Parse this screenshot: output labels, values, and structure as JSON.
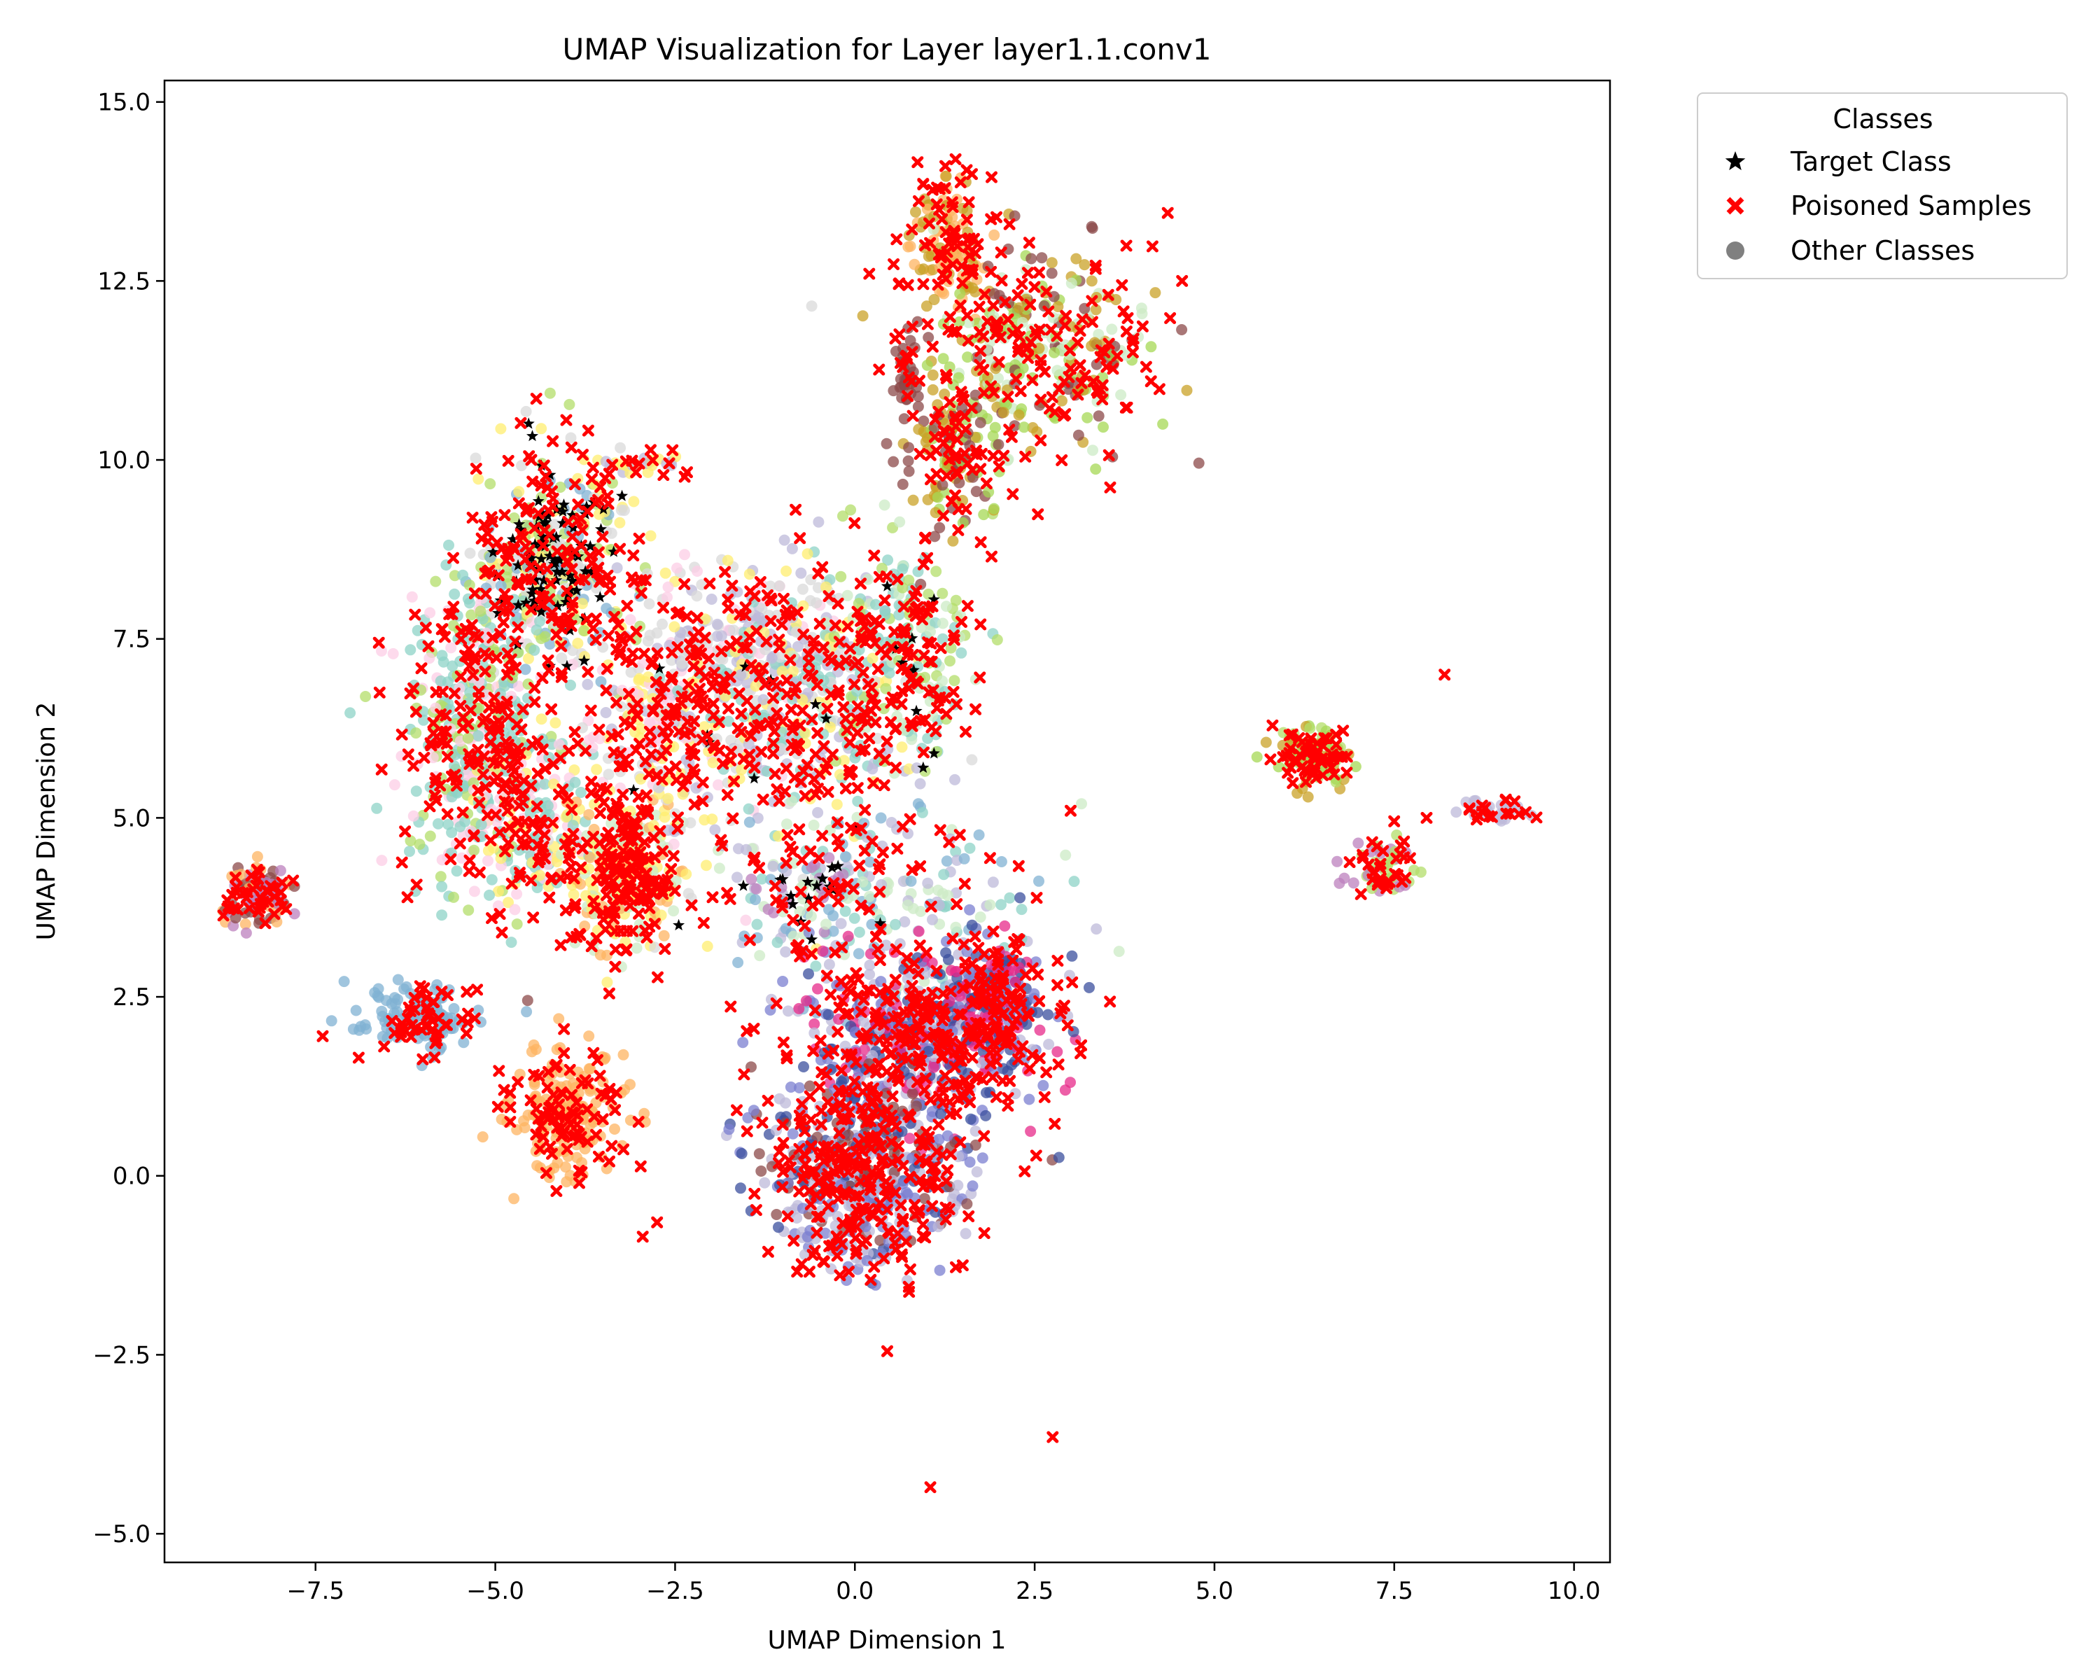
{
  "chart_data": {
    "type": "scatter",
    "title": "UMAP Visualization for Layer layer1.1.conv1",
    "xlabel": "UMAP Dimension 1",
    "ylabel": "UMAP Dimension 2",
    "xlim": [
      -9.6,
      10.5
    ],
    "ylim": [
      -5.4,
      15.3
    ],
    "xticks": [
      -7.5,
      -5.0,
      -2.5,
      0.0,
      2.5,
      5.0,
      7.5,
      10.0
    ],
    "xtick_labels": [
      "−7.5",
      "−5.0",
      "−2.5",
      "0.0",
      "2.5",
      "5.0",
      "7.5",
      "10.0"
    ],
    "yticks": [
      -5.0,
      -2.5,
      0.0,
      2.5,
      5.0,
      7.5,
      10.0,
      12.5,
      15.0
    ],
    "ytick_labels": [
      "−5.0",
      "−2.5",
      "0.0",
      "2.5",
      "5.0",
      "7.5",
      "10.0",
      "12.5",
      "15.0"
    ],
    "grid": false,
    "legend": {
      "title": "Classes",
      "placement": "outside upper right",
      "entries": [
        {
          "label": "Target Class",
          "marker": "star",
          "color": "#000000"
        },
        {
          "label": "Poisoned Samples",
          "marker": "x",
          "color": "#ff0000"
        },
        {
          "label": "Other Classes",
          "marker": "circle",
          "color": "#808080"
        }
      ]
    },
    "other_class_palette": [
      "#8dd3c7",
      "#bebada",
      "#80b1d3",
      "#fdb462",
      "#b3de69",
      "#fccde5",
      "#d9d9d9",
      "#bc80bd",
      "#ccebc5",
      "#ffed6f",
      "#7b7fd0",
      "#3b4f9e",
      "#e7298a",
      "#c9a227",
      "#8c4a4a",
      "#a6d854"
    ],
    "clusters": [
      {
        "cx": -4.2,
        "cy": 8.6,
        "sx": 0.55,
        "sy": 0.75,
        "n": 260,
        "colors": [
          "#b3de69",
          "#ffed6f",
          "#80b1d3",
          "#d9d9d9"
        ],
        "poison": 0.55,
        "target": 0.28
      },
      {
        "cx": -5.3,
        "cy": 6.2,
        "sx": 0.55,
        "sy": 1.1,
        "n": 340,
        "colors": [
          "#8dd3c7",
          "#8dd3c7",
          "#b3de69",
          "#fccde5"
        ],
        "poison": 0.5,
        "target": 0.0
      },
      {
        "cx": -4.5,
        "cy": 5.0,
        "sx": 0.45,
        "sy": 0.6,
        "n": 160,
        "colors": [
          "#8dd3c7",
          "#fccde5",
          "#ffed6f"
        ],
        "poison": 0.35,
        "target": 0.0
      },
      {
        "cx": -3.2,
        "cy": 4.2,
        "sx": 0.4,
        "sy": 0.55,
        "n": 200,
        "colors": [
          "#fdb462",
          "#ffed6f",
          "#ccebc5"
        ],
        "poison": 0.75,
        "target": 0.0
      },
      {
        "cx": -2.6,
        "cy": 6.4,
        "sx": 0.55,
        "sy": 1.0,
        "n": 240,
        "colors": [
          "#fccde5",
          "#bebada",
          "#ffed6f",
          "#d9d9d9"
        ],
        "poison": 0.6,
        "target": 0.01
      },
      {
        "cx": -1.3,
        "cy": 7.4,
        "sx": 0.6,
        "sy": 0.55,
        "n": 130,
        "colors": [
          "#d9d9d9",
          "#bebada",
          "#fccde5"
        ],
        "poison": 0.2,
        "target": 0.0
      },
      {
        "cx": -0.7,
        "cy": 6.6,
        "sx": 0.8,
        "sy": 1.0,
        "n": 300,
        "colors": [
          "#8dd3c7",
          "#ffed6f",
          "#bebada",
          "#d9d9d9"
        ],
        "poison": 0.6,
        "target": 0.02
      },
      {
        "cx": 0.7,
        "cy": 7.2,
        "sx": 0.5,
        "sy": 0.8,
        "n": 150,
        "colors": [
          "#b3de69",
          "#8dd3c7",
          "#ccebc5"
        ],
        "poison": 0.6,
        "target": 0.02
      },
      {
        "cx": 0.3,
        "cy": 3.8,
        "sx": 1.1,
        "sy": 0.75,
        "n": 190,
        "colors": [
          "#80b1d3",
          "#ccebc5",
          "#bebada",
          "#8dd3c7"
        ],
        "poison": 0.45,
        "target": 0.03
      },
      {
        "cx": 1.0,
        "cy": 2.0,
        "sx": 0.9,
        "sy": 0.6,
        "n": 420,
        "colors": [
          "#7b7fd0",
          "#3b4f9e",
          "#bebada",
          "#e7298a"
        ],
        "poison": 0.55,
        "target": 0.0
      },
      {
        "cx": 2.0,
        "cy": 2.5,
        "sx": 0.3,
        "sy": 0.4,
        "n": 110,
        "colors": [
          "#3b4f9e",
          "#e7298a",
          "#7b7fd0"
        ],
        "poison": 0.5,
        "target": 0.0
      },
      {
        "cx": 0.2,
        "cy": 0.3,
        "sx": 0.8,
        "sy": 0.55,
        "n": 320,
        "colors": [
          "#7b7fd0",
          "#bebada",
          "#8c4a4a",
          "#3b4f9e"
        ],
        "poison": 0.65,
        "target": 0.0
      },
      {
        "cx": 0.1,
        "cy": -0.8,
        "sx": 0.5,
        "sy": 0.35,
        "n": 90,
        "colors": [
          "#bebada",
          "#7b7fd0"
        ],
        "poison": 0.55,
        "target": 0.0
      },
      {
        "cx": 1.3,
        "cy": 13.0,
        "sx": 0.3,
        "sy": 0.5,
        "n": 90,
        "colors": [
          "#c9a227",
          "#fdb462"
        ],
        "poison": 0.7,
        "target": 0.0
      },
      {
        "cx": 2.6,
        "cy": 11.6,
        "sx": 0.8,
        "sy": 0.7,
        "n": 230,
        "colors": [
          "#c9a227",
          "#a6d854",
          "#8c4a4a",
          "#ccebc5"
        ],
        "poison": 0.55,
        "target": 0.0
      },
      {
        "cx": 1.4,
        "cy": 10.2,
        "sx": 0.35,
        "sy": 0.6,
        "n": 110,
        "colors": [
          "#8c4a4a",
          "#c9a227",
          "#a6d854"
        ],
        "poison": 0.5,
        "target": 0.0
      },
      {
        "cx": 0.7,
        "cy": 11.2,
        "sx": 0.1,
        "sy": 0.3,
        "n": 30,
        "colors": [
          "#8c4a4a"
        ],
        "poison": 0.5,
        "target": 0.0
      },
      {
        "cx": -4.0,
        "cy": 0.9,
        "sx": 0.4,
        "sy": 0.45,
        "n": 160,
        "colors": [
          "#fdb462"
        ],
        "poison": 0.55,
        "target": 0.0
      },
      {
        "cx": -6.0,
        "cy": 2.2,
        "sx": 0.45,
        "sy": 0.22,
        "n": 100,
        "colors": [
          "#80b1d3"
        ],
        "poison": 0.45,
        "target": 0.0
      },
      {
        "cx": -8.3,
        "cy": 3.9,
        "sx": 0.25,
        "sy": 0.22,
        "n": 70,
        "colors": [
          "#bc80bd",
          "#fdb462",
          "#8c4a4a"
        ],
        "poison": 0.6,
        "target": 0.0
      },
      {
        "cx": 6.4,
        "cy": 5.9,
        "sx": 0.3,
        "sy": 0.2,
        "n": 80,
        "colors": [
          "#b3de69",
          "#a6d854",
          "#c9a227"
        ],
        "poison": 0.6,
        "target": 0.0
      },
      {
        "cx": 7.3,
        "cy": 4.3,
        "sx": 0.25,
        "sy": 0.2,
        "n": 40,
        "colors": [
          "#bc80bd",
          "#b3de69"
        ],
        "poison": 0.6,
        "target": 0.0
      },
      {
        "cx": 8.9,
        "cy": 5.1,
        "sx": 0.25,
        "sy": 0.08,
        "n": 25,
        "colors": [
          "#bebada"
        ],
        "poison": 0.7,
        "target": 0.0
      },
      {
        "cx": -2.9,
        "cy": 9.9,
        "sx": 0.25,
        "sy": 0.12,
        "n": 20,
        "colors": [
          "#bebada",
          "#ffed6f"
        ],
        "poison": 0.5,
        "target": 0.0
      },
      {
        "cx": -0.6,
        "cy": 4.0,
        "sx": 0.3,
        "sy": 0.3,
        "n": 30,
        "colors": [
          "#bc80bd",
          "#ccebc5"
        ],
        "poison": 0.2,
        "target": 0.3
      }
    ],
    "outliers": [
      {
        "x": 0.45,
        "y": -2.45,
        "kind": "poison"
      },
      {
        "x": 1.05,
        "y": -4.35,
        "kind": "poison"
      },
      {
        "x": 2.75,
        "y": -3.65,
        "kind": "poison"
      },
      {
        "x": 8.2,
        "y": 7.0,
        "kind": "poison"
      },
      {
        "x": 3.0,
        "y": 5.1,
        "kind": "poison"
      },
      {
        "x": 4.35,
        "y": 13.45,
        "kind": "poison"
      },
      {
        "x": 4.55,
        "y": 12.5,
        "kind": "poison"
      },
      {
        "x": 1.4,
        "y": 14.2,
        "kind": "poison"
      },
      {
        "x": 1.9,
        "y": 13.95,
        "kind": "poison"
      },
      {
        "x": 0.2,
        "y": 12.6,
        "kind": "poison"
      },
      {
        "x": -0.6,
        "y": 12.15,
        "kind": "other",
        "color": "#d9d9d9"
      },
      {
        "x": -1.55,
        "y": 4.05,
        "kind": "target"
      },
      {
        "x": -2.45,
        "y": 3.5,
        "kind": "target"
      },
      {
        "x": -0.75,
        "y": 3.55,
        "kind": "target"
      },
      {
        "x": -0.6,
        "y": 3.3,
        "kind": "target"
      },
      {
        "x": 1.1,
        "y": 8.05,
        "kind": "target"
      },
      {
        "x": -1.4,
        "y": 5.55,
        "kind": "target"
      },
      {
        "x": 0.95,
        "y": 5.7,
        "kind": "target"
      },
      {
        "x": 1.1,
        "y": 5.9,
        "kind": "target"
      },
      {
        "x": -0.45,
        "y": 4.15,
        "kind": "target"
      },
      {
        "x": -6.9,
        "y": 1.65,
        "kind": "poison"
      },
      {
        "x": -7.4,
        "y": 1.95,
        "kind": "poison"
      },
      {
        "x": -4.55,
        "y": 2.45,
        "kind": "other",
        "color": "#8c4a4a"
      },
      {
        "x": -2.95,
        "y": -0.85,
        "kind": "poison"
      },
      {
        "x": -2.75,
        "y": -0.65,
        "kind": "poison"
      },
      {
        "x": 1.5,
        "y": -1.25,
        "kind": "poison"
      },
      {
        "x": 1.8,
        "y": -0.8,
        "kind": "poison"
      },
      {
        "x": 0.75,
        "y": -1.55,
        "kind": "poison"
      },
      {
        "x": 1.9,
        "y": 8.65,
        "kind": "poison"
      },
      {
        "x": 1.75,
        "y": 8.85,
        "kind": "poison"
      },
      {
        "x": 7.95,
        "y": 5.0,
        "kind": "poison"
      },
      {
        "x": -5.05,
        "y": 3.6,
        "kind": "poison"
      },
      {
        "x": -4.5,
        "y": 10.0,
        "kind": "poison"
      },
      {
        "x": -3.0,
        "y": 8.9,
        "kind": "poison"
      },
      {
        "x": 3.5,
        "y": 11.3,
        "kind": "poison"
      },
      {
        "x": 4.05,
        "y": 11.3,
        "kind": "poison"
      },
      {
        "x": -5.9,
        "y": 1.8,
        "kind": "other",
        "color": "#80b1d3"
      },
      {
        "x": -3.8,
        "y": 0.05,
        "kind": "poison"
      },
      {
        "x": -3.45,
        "y": 0.1,
        "kind": "other",
        "color": "#fdb462"
      }
    ]
  }
}
